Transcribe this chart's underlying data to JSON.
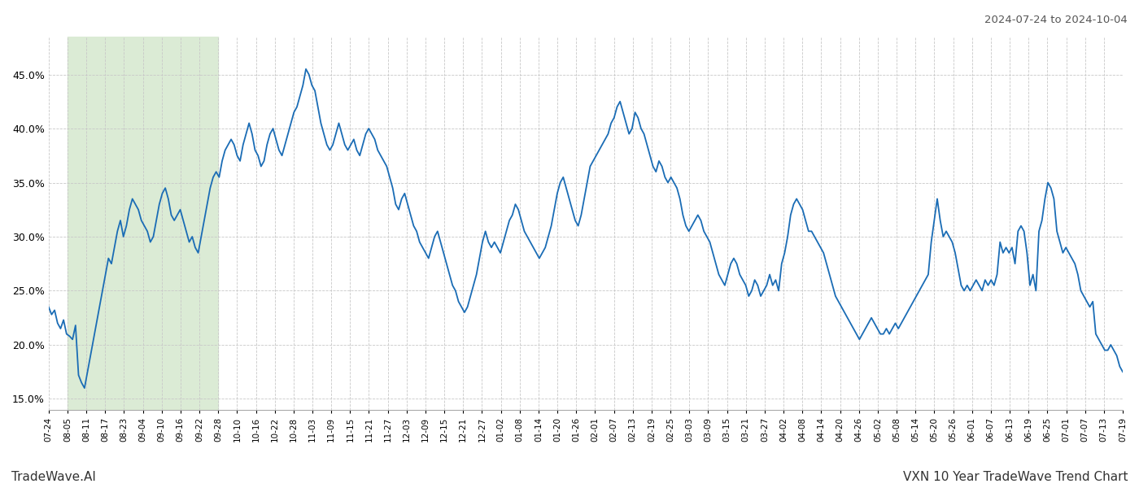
{
  "title_right": "2024-07-24 to 2024-10-04",
  "footer_left": "TradeWave.AI",
  "footer_right": "VXN 10 Year TradeWave Trend Chart",
  "line_color": "#1a6cb5",
  "bg_color": "#ffffff",
  "grid_color": "#c8c8c8",
  "grid_style": "--",
  "shade_color": "#dbebd5",
  "ylim": [
    14.0,
    48.5
  ],
  "yticks": [
    15.0,
    20.0,
    25.0,
    30.0,
    35.0,
    40.0,
    45.0
  ],
  "x_labels": [
    "07-24",
    "08-05",
    "08-11",
    "08-17",
    "08-23",
    "09-04",
    "09-10",
    "09-16",
    "09-22",
    "09-28",
    "10-10",
    "10-16",
    "10-22",
    "10-28",
    "11-03",
    "11-09",
    "11-15",
    "11-21",
    "11-27",
    "12-03",
    "12-09",
    "12-15",
    "12-21",
    "12-27",
    "01-02",
    "01-08",
    "01-14",
    "01-20",
    "01-26",
    "02-01",
    "02-07",
    "02-13",
    "02-19",
    "02-25",
    "03-03",
    "03-09",
    "03-15",
    "03-21",
    "03-27",
    "04-02",
    "04-08",
    "04-14",
    "04-20",
    "04-26",
    "05-02",
    "05-08",
    "05-14",
    "05-20",
    "05-26",
    "06-01",
    "06-07",
    "06-13",
    "06-19",
    "06-25",
    "07-01",
    "07-07",
    "07-13",
    "07-19"
  ],
  "shade_label_start": "08-05",
  "shade_label_end": "09-28",
  "values": [
    23.5,
    22.8,
    23.2,
    22.0,
    21.5,
    22.3,
    21.0,
    20.8,
    20.5,
    21.8,
    17.2,
    16.5,
    16.0,
    17.5,
    19.0,
    20.5,
    22.0,
    23.5,
    25.0,
    26.5,
    28.0,
    27.5,
    29.0,
    30.5,
    31.5,
    30.0,
    31.0,
    32.5,
    33.5,
    33.0,
    32.5,
    31.5,
    31.0,
    30.5,
    29.5,
    30.0,
    31.5,
    33.0,
    34.0,
    34.5,
    33.5,
    32.0,
    31.5,
    32.0,
    32.5,
    31.5,
    30.5,
    29.5,
    30.0,
    29.0,
    28.5,
    30.0,
    31.5,
    33.0,
    34.5,
    35.5,
    36.0,
    35.5,
    37.0,
    38.0,
    38.5,
    39.0,
    38.5,
    37.5,
    37.0,
    38.5,
    39.5,
    40.5,
    39.5,
    38.0,
    37.5,
    36.5,
    37.0,
    38.5,
    39.5,
    40.0,
    39.0,
    38.0,
    37.5,
    38.5,
    39.5,
    40.5,
    41.5,
    42.0,
    43.0,
    44.0,
    45.5,
    45.0,
    44.0,
    43.5,
    42.0,
    40.5,
    39.5,
    38.5,
    38.0,
    38.5,
    39.5,
    40.5,
    39.5,
    38.5,
    38.0,
    38.5,
    39.0,
    38.0,
    37.5,
    38.5,
    39.5,
    40.0,
    39.5,
    39.0,
    38.0,
    37.5,
    37.0,
    36.5,
    35.5,
    34.5,
    33.0,
    32.5,
    33.5,
    34.0,
    33.0,
    32.0,
    31.0,
    30.5,
    29.5,
    29.0,
    28.5,
    28.0,
    29.0,
    30.0,
    30.5,
    29.5,
    28.5,
    27.5,
    26.5,
    25.5,
    25.0,
    24.0,
    23.5,
    23.0,
    23.5,
    24.5,
    25.5,
    26.5,
    28.0,
    29.5,
    30.5,
    29.5,
    29.0,
    29.5,
    29.0,
    28.5,
    29.5,
    30.5,
    31.5,
    32.0,
    33.0,
    32.5,
    31.5,
    30.5,
    30.0,
    29.5,
    29.0,
    28.5,
    28.0,
    28.5,
    29.0,
    30.0,
    31.0,
    32.5,
    34.0,
    35.0,
    35.5,
    34.5,
    33.5,
    32.5,
    31.5,
    31.0,
    32.0,
    33.5,
    35.0,
    36.5,
    37.0,
    37.5,
    38.0,
    38.5,
    39.0,
    39.5,
    40.5,
    41.0,
    42.0,
    42.5,
    41.5,
    40.5,
    39.5,
    40.0,
    41.5,
    41.0,
    40.0,
    39.5,
    38.5,
    37.5,
    36.5,
    36.0,
    37.0,
    36.5,
    35.5,
    35.0,
    35.5,
    35.0,
    34.5,
    33.5,
    32.0,
    31.0,
    30.5,
    31.0,
    31.5,
    32.0,
    31.5,
    30.5,
    30.0,
    29.5,
    28.5,
    27.5,
    26.5,
    26.0,
    25.5,
    26.5,
    27.5,
    28.0,
    27.5,
    26.5,
    26.0,
    25.5,
    24.5,
    25.0,
    26.0,
    25.5,
    24.5,
    25.0,
    25.5,
    26.5,
    25.5,
    26.0,
    25.0,
    27.5,
    28.5,
    30.0,
    32.0,
    33.0,
    33.5,
    33.0,
    32.5,
    31.5,
    30.5,
    30.5,
    30.0,
    29.5,
    29.0,
    28.5,
    27.5,
    26.5,
    25.5,
    24.5,
    24.0,
    23.5,
    23.0,
    22.5,
    22.0,
    21.5,
    21.0,
    20.5,
    21.0,
    21.5,
    22.0,
    22.5,
    22.0,
    21.5,
    21.0,
    21.0,
    21.5,
    21.0,
    21.5,
    22.0,
    21.5,
    22.0,
    22.5,
    23.0,
    23.5,
    24.0,
    24.5,
    25.0,
    25.5,
    26.0,
    26.5,
    29.5,
    31.5,
    33.5,
    31.5,
    30.0,
    30.5,
    30.0,
    29.5,
    28.5,
    27.0,
    25.5,
    25.0,
    25.5,
    25.0,
    25.5,
    26.0,
    25.5,
    25.0,
    26.0,
    25.5,
    26.0,
    25.5,
    26.5,
    29.5,
    28.5,
    29.0,
    28.5,
    29.0,
    27.5,
    30.5,
    31.0,
    30.5,
    28.5,
    25.5,
    26.5,
    25.0,
    30.5,
    31.5,
    33.5,
    35.0,
    34.5,
    33.5,
    30.5,
    29.5,
    28.5,
    29.0,
    28.5,
    28.0,
    27.5,
    26.5,
    25.0,
    24.5,
    24.0,
    23.5,
    24.0,
    21.0,
    20.5,
    20.0,
    19.5,
    19.5,
    20.0,
    19.5,
    19.0,
    18.0,
    17.5
  ]
}
